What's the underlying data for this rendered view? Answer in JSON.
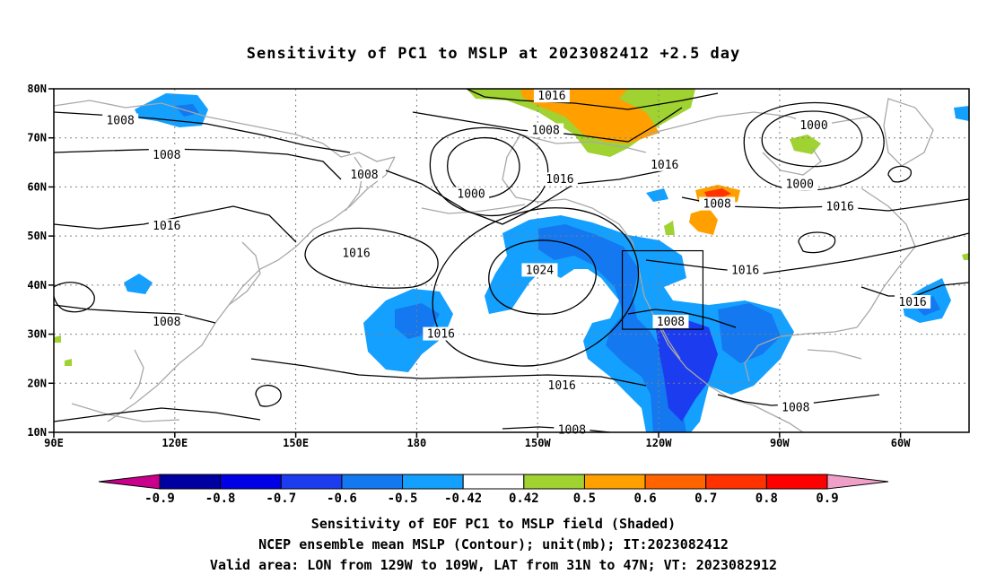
{
  "title": "Sensitivity of PC1 to MSLP at 2023082412 +2.5 day",
  "captions": [
    "Sensitivity of EOF PC1 to MSLP field (Shaded)",
    "NCEP ensemble mean MSLP (Contour); unit(mb); IT:2023082412",
    "Valid area: LON from 129W to 109W, LAT from 31N to 47N; VT: 2023082912"
  ],
  "map": {
    "lat_labels": [
      "80N",
      "70N",
      "60N",
      "50N",
      "40N",
      "30N",
      "20N",
      "10N"
    ],
    "lon_labels": [
      "90E",
      "120E",
      "150E",
      "180",
      "150W",
      "120W",
      "90W",
      "60W"
    ],
    "lat_values": [
      80,
      70,
      60,
      50,
      40,
      30,
      20,
      10
    ],
    "lon_values": [
      90,
      120,
      150,
      180,
      210,
      240,
      270,
      300
    ],
    "lon_range": [
      90,
      317
    ],
    "lat_range": [
      10,
      80
    ],
    "valid_box": {
      "lon": [
        231,
        251
      ],
      "lat": [
        31,
        47
      ]
    },
    "contour_labels": [
      {
        "text": "1016",
        "lon": 213.5,
        "lat": 78.5
      },
      {
        "text": "1008",
        "lon": 106.5,
        "lat": 73.5
      },
      {
        "text": "1008",
        "lon": 212,
        "lat": 71.5
      },
      {
        "text": "1000",
        "lon": 278.5,
        "lat": 72.5
      },
      {
        "text": "1008",
        "lon": 118,
        "lat": 66.5
      },
      {
        "text": "1016",
        "lon": 241.5,
        "lat": 64.5
      },
      {
        "text": "1008",
        "lon": 167,
        "lat": 62.5
      },
      {
        "text": "1016",
        "lon": 215.5,
        "lat": 61.5
      },
      {
        "text": "1000",
        "lon": 275,
        "lat": 60.5
      },
      {
        "text": "1000",
        "lon": 193.5,
        "lat": 58.5
      },
      {
        "text": "1008",
        "lon": 254.5,
        "lat": 56.5
      },
      {
        "text": "1016",
        "lon": 285,
        "lat": 56
      },
      {
        "text": "1016",
        "lon": 118,
        "lat": 52
      },
      {
        "text": "1016",
        "lon": 165,
        "lat": 46.5
      },
      {
        "text": "1024",
        "lon": 210.5,
        "lat": 43
      },
      {
        "text": "1016",
        "lon": 261.5,
        "lat": 43
      },
      {
        "text": "1016",
        "lon": 303,
        "lat": 36.5
      },
      {
        "text": "1008",
        "lon": 118,
        "lat": 32.5
      },
      {
        "text": "1008",
        "lon": 243,
        "lat": 32.5
      },
      {
        "text": "1016",
        "lon": 186,
        "lat": 30
      },
      {
        "text": "1016",
        "lon": 216,
        "lat": 19.5
      },
      {
        "text": "1008",
        "lon": 274,
        "lat": 15
      },
      {
        "text": "1008",
        "lon": 218.5,
        "lat": 10.5
      }
    ]
  },
  "colorbar": {
    "labels": [
      "-0.9",
      "-0.8",
      "-0.7",
      "-0.6",
      "-0.5",
      "-0.42",
      "0.42",
      "0.5",
      "0.6",
      "0.7",
      "0.8",
      "0.9"
    ],
    "colors": [
      "#0000a0",
      "#0000e6",
      "#1c3cf0",
      "#1478f0",
      "#14a0ff",
      "#ffffff",
      "#a0d232",
      "#ffa000",
      "#ff6400",
      "#ff3200",
      "#ff0000"
    ],
    "low_end_color": "#c8008c",
    "high_end_color": "#f0a0c8"
  }
}
